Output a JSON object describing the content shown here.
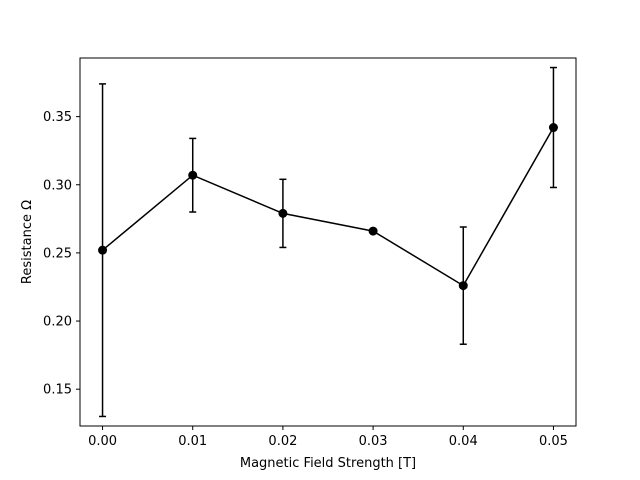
{
  "chart_data": {
    "type": "line",
    "title": "",
    "xlabel": "Magnetic Field Strength [T]",
    "ylabel": "Resistance Ω",
    "xlim": [
      -0.0025,
      0.0525
    ],
    "ylim": [
      0.123,
      0.393
    ],
    "xticks": [
      0.0,
      0.01,
      0.02,
      0.03,
      0.04,
      0.05
    ],
    "xtick_labels": [
      "0.00",
      "0.01",
      "0.02",
      "0.03",
      "0.04",
      "0.05"
    ],
    "yticks": [
      0.15,
      0.2,
      0.25,
      0.3,
      0.35
    ],
    "ytick_labels": [
      "0.15",
      "0.20",
      "0.25",
      "0.30",
      "0.35"
    ],
    "grid": false,
    "series": [
      {
        "color": "#000000",
        "marker": "circle",
        "x": [
          0.0,
          0.01,
          0.02,
          0.03,
          0.04,
          0.05
        ],
        "y": [
          0.252,
          0.307,
          0.279,
          0.266,
          0.226,
          0.342
        ],
        "yerr_low": [
          0.13,
          0.28,
          0.254,
          0.266,
          0.183,
          0.298
        ],
        "yerr_high": [
          0.374,
          0.334,
          0.304,
          0.266,
          0.269,
          0.386
        ]
      }
    ]
  }
}
